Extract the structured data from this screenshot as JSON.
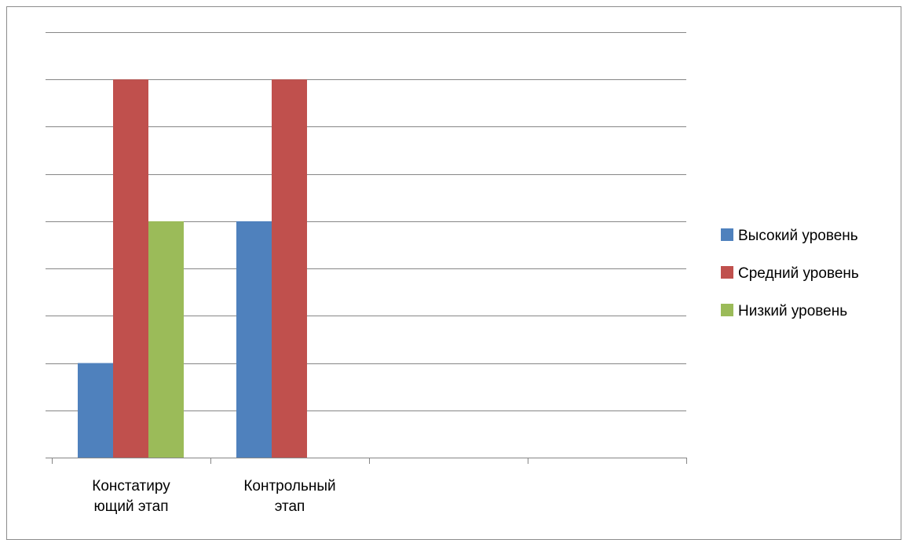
{
  "chart_data": {
    "type": "bar",
    "categories": [
      [
        "Констатиру",
        "ющий этап"
      ],
      [
        "Контрольный",
        "этап"
      ],
      [],
      []
    ],
    "series": [
      {
        "name": "Высокий уровень",
        "color": "#4f81bd",
        "values": [
          2,
          5,
          null,
          null
        ]
      },
      {
        "name": "Средний уровень",
        "color": "#c0504d",
        "values": [
          8,
          8,
          null,
          null
        ]
      },
      {
        "name": "Низкий уровень",
        "color": "#9bbb59",
        "values": [
          5,
          null,
          null,
          null
        ]
      }
    ],
    "ylim": [
      0,
      9
    ],
    "gridlines": 9,
    "grid": true,
    "legend": "right",
    "axis_color": "#868686",
    "grid_color": "#868686"
  }
}
